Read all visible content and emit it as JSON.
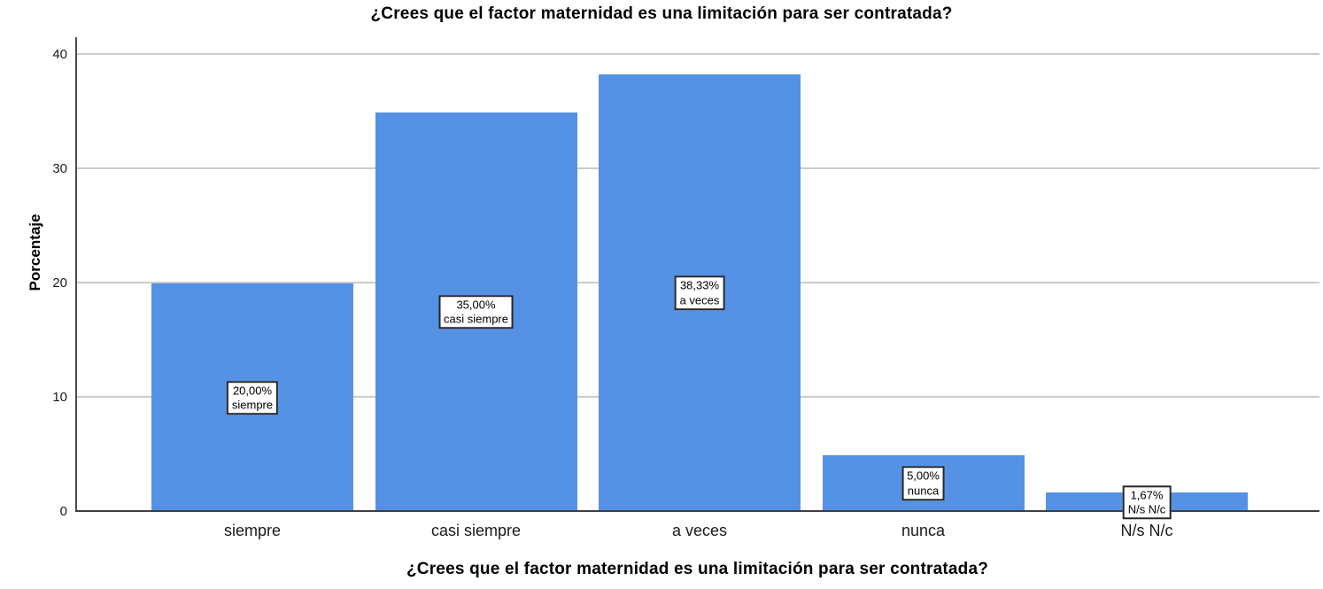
{
  "chart_data": {
    "type": "bar",
    "title": "¿Crees que el factor maternidad es una limitación para ser contratada?",
    "xlabel": "¿Crees que el factor maternidad es una limitación para ser contratada?",
    "ylabel": "Porcentaje",
    "categories": [
      "siempre",
      "casi siempre",
      "a veces",
      "nunca",
      "N/s N/c"
    ],
    "values": [
      20.0,
      35.0,
      38.33,
      5.0,
      1.67
    ],
    "bars": [
      {
        "category": "siempre",
        "value": 20.0,
        "label_percent": "20,00%",
        "label_name": "siempre"
      },
      {
        "category": "casi siempre",
        "value": 35.0,
        "label_percent": "35,00%",
        "label_name": "casi siempre"
      },
      {
        "category": "a veces",
        "value": 38.33,
        "label_percent": "38,33%",
        "label_name": "a veces"
      },
      {
        "category": "nunca",
        "value": 5.0,
        "label_percent": "5,00%",
        "label_name": "nunca"
      },
      {
        "category": "N/s N/c",
        "value": 1.67,
        "label_percent": "1,67%",
        "label_name": "N/s N/c"
      }
    ],
    "ylim": [
      0,
      41.5
    ],
    "yticks": [
      0,
      10,
      20,
      30,
      40
    ],
    "grid": true,
    "legend": "none",
    "bar_color": "#5591e4",
    "gridline_color": "#cbcbcb",
    "axis_color": "#4a4a4a"
  }
}
